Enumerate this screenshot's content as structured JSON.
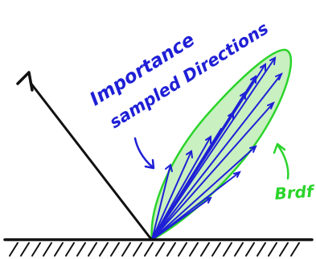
{
  "labels": {
    "annotation_line1": "Importance",
    "annotation_line2": "sampled Directions",
    "brdf": "Brdf"
  },
  "colors": {
    "ink": "#111111",
    "blue": "#1f1fd6",
    "lobe_fill": "#c8f0c0",
    "lobe_stroke": "#2bd42b",
    "brdf_text": "#2bd42b",
    "background": "#ffffff"
  }
}
